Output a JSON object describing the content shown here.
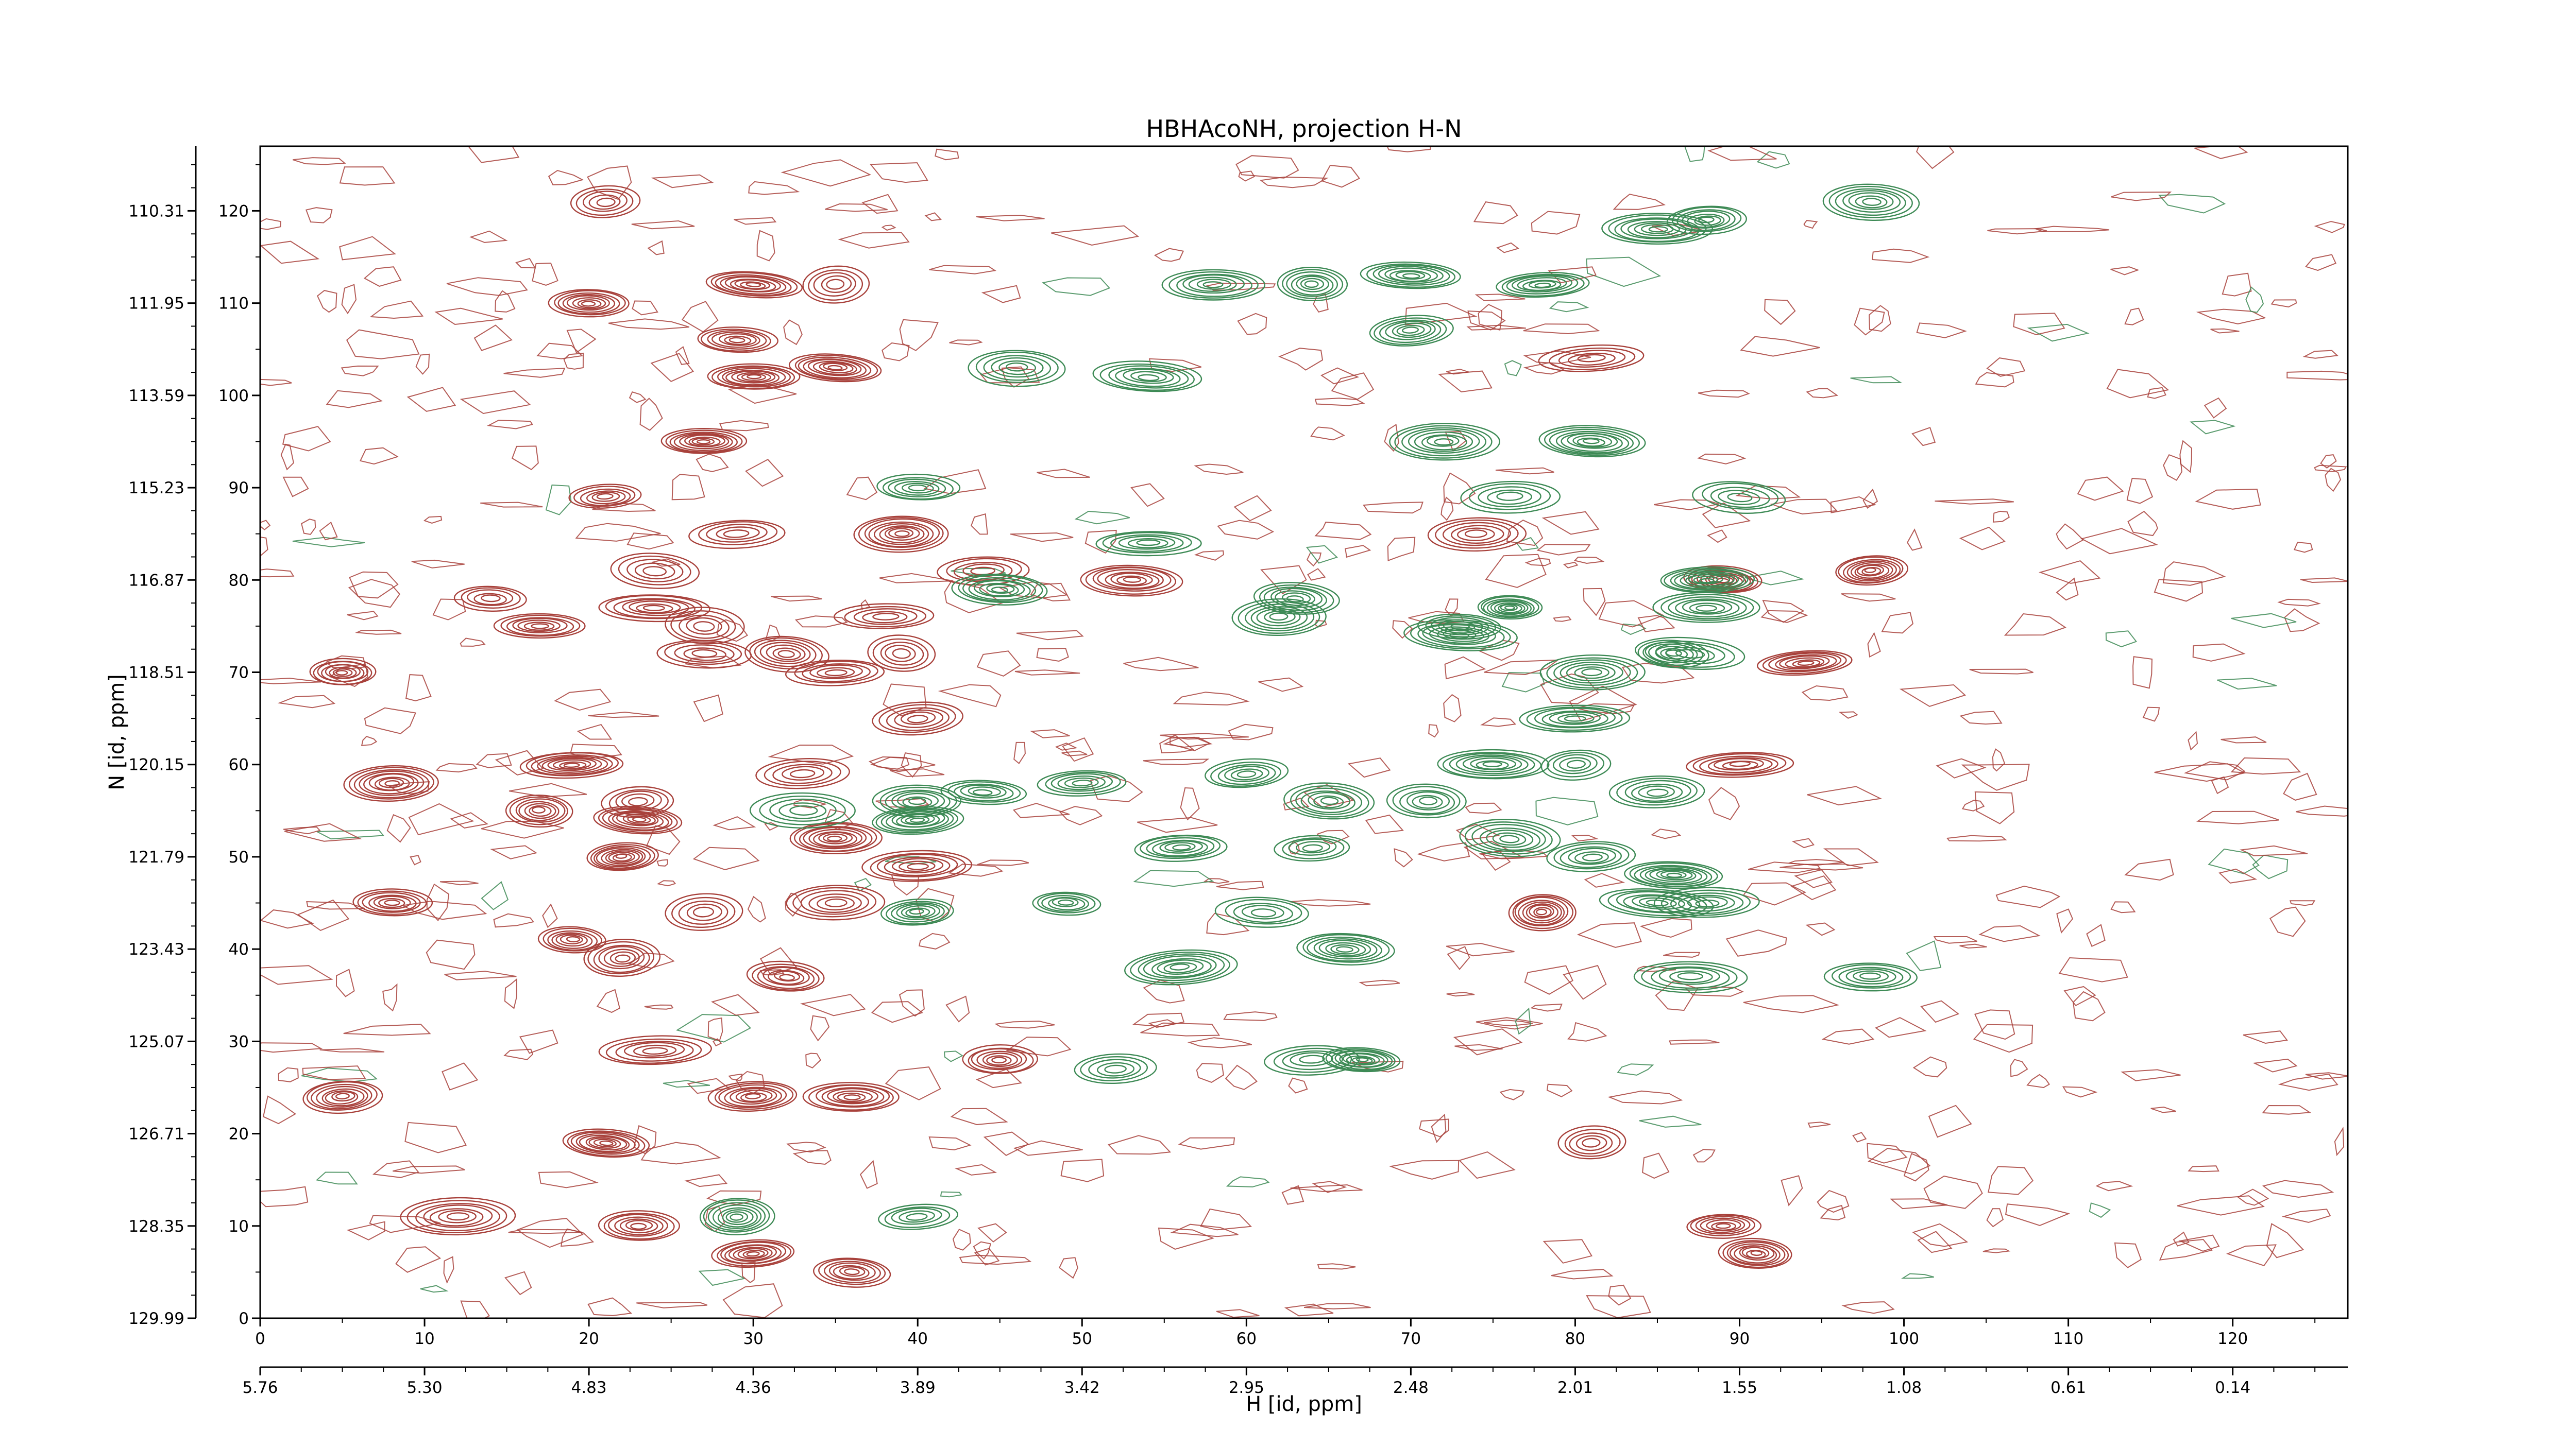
{
  "chart_data": {
    "type": "contour",
    "title": "HBHAcoNH, projection H-N",
    "xlabel": "H [id, ppm]",
    "ylabel": "N [id, ppm]",
    "x_index_range": [
      0,
      127
    ],
    "y_index_range": [
      0,
      127
    ],
    "x_index_ticks": [
      0,
      10,
      20,
      30,
      40,
      50,
      60,
      70,
      80,
      90,
      100,
      110,
      120
    ],
    "y_index_ticks": [
      0,
      10,
      20,
      30,
      40,
      50,
      60,
      70,
      80,
      90,
      100,
      110,
      120
    ],
    "x_ppm_ticks": [
      "5.76",
      "5.30",
      "4.83",
      "4.36",
      "3.89",
      "3.42",
      "2.95",
      "2.48",
      "2.01",
      "1.55",
      "1.08",
      "0.61",
      "0.14"
    ],
    "y_ppm_ticks": [
      "129.99",
      "128.35",
      "126.71",
      "125.07",
      "123.43",
      "121.79",
      "120.15",
      "118.51",
      "116.87",
      "115.23",
      "113.59",
      "111.95",
      "110.31"
    ],
    "colors": {
      "positive": "#a8413b",
      "negative": "#3d8a55"
    },
    "positive_peaks": [
      [
        21,
        121
      ],
      [
        30,
        112
      ],
      [
        35,
        112
      ],
      [
        30,
        102
      ],
      [
        35,
        103
      ],
      [
        29,
        106
      ],
      [
        27,
        95
      ],
      [
        21,
        89
      ],
      [
        29,
        85
      ],
      [
        39,
        85
      ],
      [
        24,
        81
      ],
      [
        44,
        81
      ],
      [
        53,
        80
      ],
      [
        24,
        77
      ],
      [
        14,
        78
      ],
      [
        17,
        75
      ],
      [
        27,
        75
      ],
      [
        27,
        72
      ],
      [
        32,
        72
      ],
      [
        35,
        70
      ],
      [
        39,
        72
      ],
      [
        5,
        70
      ],
      [
        40,
        65
      ],
      [
        19,
        60
      ],
      [
        8,
        58
      ],
      [
        33,
        59
      ],
      [
        23,
        56
      ],
      [
        17,
        55
      ],
      [
        23,
        54
      ],
      [
        35,
        52
      ],
      [
        22,
        50
      ],
      [
        40,
        49
      ],
      [
        8,
        45
      ],
      [
        27,
        44
      ],
      [
        35,
        45
      ],
      [
        19,
        41
      ],
      [
        22,
        39
      ],
      [
        32,
        37
      ],
      [
        24,
        29
      ],
      [
        45,
        28
      ],
      [
        30,
        24
      ],
      [
        36,
        24
      ],
      [
        21,
        19
      ],
      [
        81,
        19
      ],
      [
        12,
        11
      ],
      [
        23,
        10
      ],
      [
        89,
        10
      ],
      [
        91,
        7
      ],
      [
        30,
        7
      ],
      [
        36,
        5
      ],
      [
        81,
        104
      ],
      [
        74,
        85
      ],
      [
        98,
        81
      ],
      [
        89,
        80
      ],
      [
        94,
        71
      ],
      [
        78,
        44
      ],
      [
        90,
        60
      ],
      [
        5,
        24
      ],
      [
        20,
        110
      ],
      [
        38,
        76
      ]
    ],
    "negative_peaks": [
      [
        58,
        112
      ],
      [
        64,
        112
      ],
      [
        70,
        113
      ],
      [
        78,
        112
      ],
      [
        46,
        103
      ],
      [
        54,
        102
      ],
      [
        70,
        107
      ],
      [
        72,
        95
      ],
      [
        81,
        95
      ],
      [
        76,
        89
      ],
      [
        90,
        89
      ],
      [
        40,
        90
      ],
      [
        54,
        84
      ],
      [
        45,
        79
      ],
      [
        63,
        78
      ],
      [
        62,
        76
      ],
      [
        73,
        75
      ],
      [
        76,
        77
      ],
      [
        81,
        70
      ],
      [
        86,
        72
      ],
      [
        88,
        80
      ],
      [
        88,
        77
      ],
      [
        87,
        72
      ],
      [
        80,
        65
      ],
      [
        60,
        59
      ],
      [
        65,
        56
      ],
      [
        71,
        56
      ],
      [
        75,
        60
      ],
      [
        80,
        60
      ],
      [
        40,
        56
      ],
      [
        44,
        57
      ],
      [
        50,
        58
      ],
      [
        40,
        54
      ],
      [
        33,
        55
      ],
      [
        85,
        57
      ],
      [
        56,
        51
      ],
      [
        64,
        51
      ],
      [
        76,
        52
      ],
      [
        86,
        48
      ],
      [
        81,
        50
      ],
      [
        61,
        44
      ],
      [
        49,
        45
      ],
      [
        40,
        44
      ],
      [
        85,
        45
      ],
      [
        88,
        45
      ],
      [
        66,
        40
      ],
      [
        56,
        38
      ],
      [
        87,
        37
      ],
      [
        98,
        37
      ],
      [
        67,
        28
      ],
      [
        64,
        28
      ],
      [
        52,
        27
      ],
      [
        29,
        11
      ],
      [
        40,
        11
      ],
      [
        88,
        119
      ],
      [
        98,
        121
      ],
      [
        85,
        118
      ],
      [
        73,
        74
      ]
    ]
  }
}
